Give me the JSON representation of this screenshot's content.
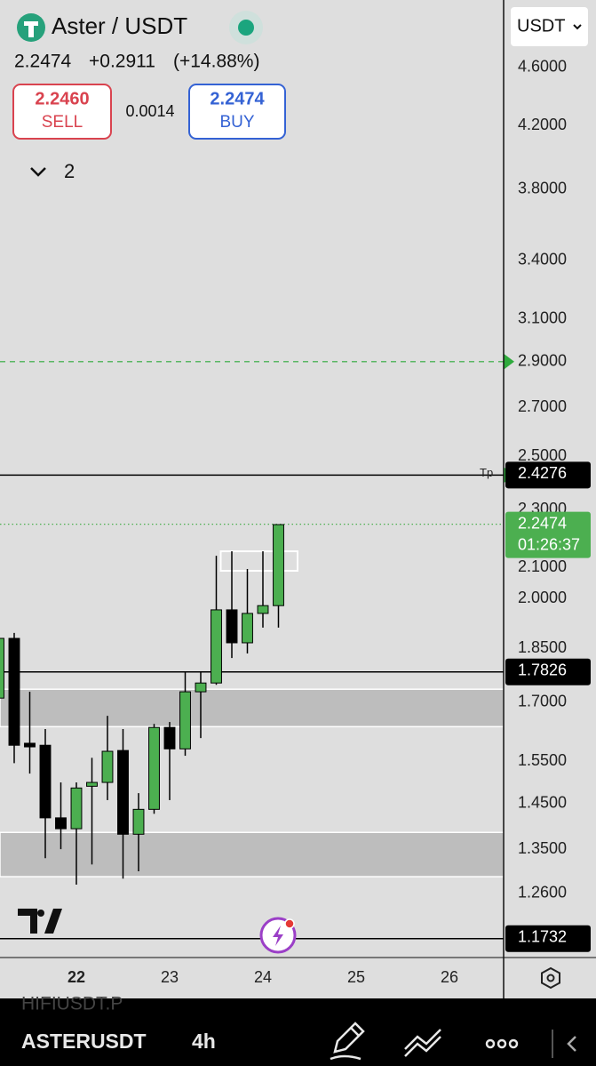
{
  "header": {
    "symbol": "Aster / USDT",
    "last": "2.2474",
    "change": "+0.2911",
    "change_pct": "(+14.88%)"
  },
  "sell": {
    "price": "2.2460",
    "label": "SELL"
  },
  "spread": "0.0014",
  "buy": {
    "price": "2.2474",
    "label": "BUY"
  },
  "indicators_count": "2",
  "quote_currency": "USDT",
  "chart_data": {
    "type": "candlestick",
    "log_scale": true,
    "ylim": [
      1.139,
      5.114
    ],
    "yticks": [
      {
        "value": 4.6,
        "label": "4.6000"
      },
      {
        "value": 4.2,
        "label": "4.2000"
      },
      {
        "value": 3.8,
        "label": "3.8000"
      },
      {
        "value": 3.4,
        "label": "3.4000"
      },
      {
        "value": 3.1,
        "label": "3.1000"
      },
      {
        "value": 2.9,
        "label": "2.9000"
      },
      {
        "value": 2.7,
        "label": "2.7000"
      },
      {
        "value": 2.5,
        "label": "2.5000"
      },
      {
        "value": 2.3,
        "label": "2.3000"
      },
      {
        "value": 2.1,
        "label": "2.1000"
      },
      {
        "value": 2,
        "label": "2.0000"
      },
      {
        "value": 1.85,
        "label": "1.8500"
      },
      {
        "value": 1.7,
        "label": "1.7000"
      },
      {
        "value": 1.55,
        "label": "1.5500"
      },
      {
        "value": 1.45,
        "label": "1.4500"
      },
      {
        "value": 1.35,
        "label": "1.3500"
      },
      {
        "value": 1.26,
        "label": "1.2600"
      }
    ],
    "xlim": [
      21.181,
      26.581
    ],
    "xticks": [
      22,
      23,
      24,
      25,
      26
    ],
    "x": [
      21.1667,
      21.3333,
      21.5,
      21.6667,
      21.8333,
      22,
      22.1667,
      22.3333,
      22.5,
      22.6667,
      22.8333,
      23,
      23.1667,
      23.3333,
      23.5,
      23.6667,
      23.8333,
      24,
      24.1667
    ],
    "open": [
      1.711,
      1.879,
      1.594,
      1.589,
      1.418,
      1.394,
      1.49,
      1.499,
      1.576,
      1.382,
      1.437,
      1.634,
      1.58,
      1.728,
      1.752,
      1.965,
      1.866,
      1.954,
      1.978
    ],
    "high": [
      1.895,
      1.895,
      1.728,
      1.63,
      1.499,
      1.499,
      1.558,
      1.664,
      1.63,
      1.474,
      1.643,
      1.648,
      1.784,
      1.784,
      2.139,
      2.154,
      2.095,
      2.154,
      2.246
    ],
    "low": [
      1.699,
      1.545,
      1.52,
      1.331,
      1.35,
      1.277,
      1.318,
      1.458,
      1.289,
      1.304,
      1.427,
      1.458,
      1.563,
      1.607,
      1.747,
      1.822,
      1.835,
      1.911,
      1.911
    ],
    "close": [
      1.879,
      1.589,
      1.585,
      1.418,
      1.394,
      1.486,
      1.499,
      1.574,
      1.382,
      1.437,
      1.634,
      1.58,
      1.728,
      1.752,
      1.965,
      1.866,
      1.954,
      1.978,
      2.246
    ],
    "up_color": "#4caf50",
    "down_color": "#000000",
    "zones": [
      {
        "low": 1.636,
        "high": 1.735
      },
      {
        "low": 1.293,
        "high": 1.386
      }
    ],
    "box": {
      "x": [
        23.5476,
        24.3714
      ],
      "low": 2.089,
      "high": 2.154
    },
    "levels": [
      {
        "value": 2.9,
        "color": "#2eaa3c",
        "style": "dashed"
      },
      {
        "value": 2.4276,
        "label": "2.4276",
        "tag": "Tp",
        "color": "#000000",
        "style": "solid"
      },
      {
        "value": 2.2474,
        "label": "2.2474",
        "countdown": "01:26:37",
        "color": "#4caf50",
        "style": "dotted"
      },
      {
        "value": 1.7826,
        "label": "1.7826",
        "color": "#000000",
        "style": "solid"
      },
      {
        "value": 1.1732,
        "label": "1.1732",
        "color": "#000000",
        "style": "solid"
      }
    ]
  },
  "footer": {
    "ghost_symbol": "HIFIUSDT.P",
    "symbol": "ASTERUSDT",
    "interval": "4h"
  }
}
